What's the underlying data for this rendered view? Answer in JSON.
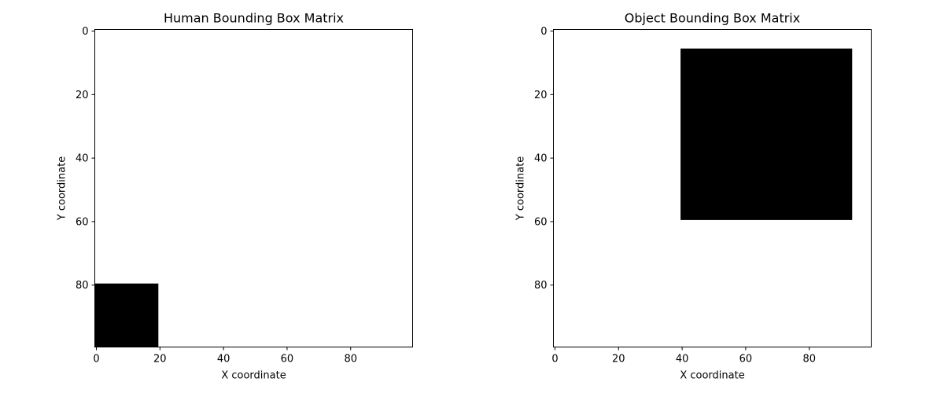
{
  "chart_data": [
    {
      "type": "heatmap",
      "title": "Human Bounding Box Matrix",
      "xlabel": "X coordinate",
      "ylabel": "Y coordinate",
      "grid": false,
      "matrix_size": 100,
      "xlim": [
        0,
        100
      ],
      "ylim": [
        100,
        0
      ],
      "x_ticks": [
        0,
        20,
        40,
        60,
        80
      ],
      "y_ticks": [
        0,
        20,
        40,
        60,
        80
      ],
      "filled_box": {
        "x": [
          0,
          20
        ],
        "y": [
          80,
          100
        ]
      },
      "fill_color": "#000000",
      "background_color": "#ffffff"
    },
    {
      "type": "heatmap",
      "title": "Object Bounding Box Matrix",
      "xlabel": "X coordinate",
      "ylabel": "Y coordinate",
      "grid": false,
      "matrix_size": 100,
      "xlim": [
        0,
        100
      ],
      "ylim": [
        100,
        0
      ],
      "x_ticks": [
        0,
        20,
        40,
        60,
        80
      ],
      "y_ticks": [
        0,
        20,
        40,
        60,
        80
      ],
      "filled_box": {
        "x": [
          40,
          94
        ],
        "y": [
          6,
          60
        ]
      },
      "fill_color": "#000000",
      "background_color": "#ffffff"
    }
  ]
}
